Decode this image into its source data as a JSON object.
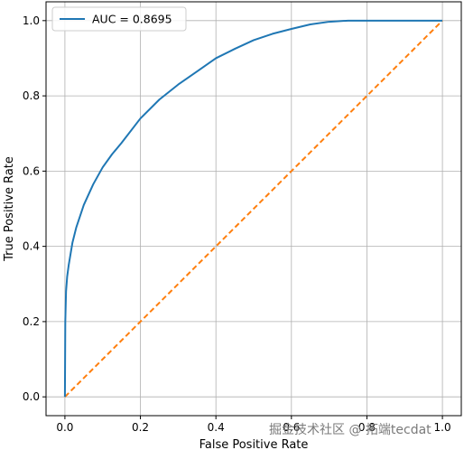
{
  "chart_data": {
    "type": "line",
    "xlabel": "False Positive Rate",
    "ylabel": "True Positive Rate",
    "xlim": [
      -0.05,
      1.05
    ],
    "ylim": [
      -0.05,
      1.05
    ],
    "xticks": [
      "0.0",
      "0.2",
      "0.4",
      "0.6",
      "0.8",
      "1.0"
    ],
    "yticks": [
      "0.0",
      "0.2",
      "0.4",
      "0.6",
      "0.8",
      "1.0"
    ],
    "grid": true,
    "legend_position": "top-left",
    "series": [
      {
        "name": "AUC = 0.8695",
        "color": "#1f77b4",
        "style": "solid",
        "x": [
          0,
          0.001,
          0.003,
          0.006,
          0.01,
          0.02,
          0.03,
          0.05,
          0.075,
          0.1,
          0.125,
          0.15,
          0.2,
          0.25,
          0.3,
          0.35,
          0.4,
          0.45,
          0.5,
          0.55,
          0.6,
          0.65,
          0.7,
          0.75,
          0.8,
          0.85,
          0.9,
          0.95,
          1.0
        ],
        "y": [
          0,
          0.2,
          0.28,
          0.32,
          0.35,
          0.41,
          0.45,
          0.51,
          0.565,
          0.61,
          0.645,
          0.675,
          0.74,
          0.79,
          0.83,
          0.865,
          0.9,
          0.925,
          0.948,
          0.965,
          0.978,
          0.99,
          0.997,
          1.0,
          1.0,
          1.0,
          1.0,
          1.0,
          1.0
        ]
      },
      {
        "name": "",
        "color": "#ff7f0e",
        "style": "dashed",
        "x": [
          0,
          1
        ],
        "y": [
          0,
          1
        ]
      }
    ]
  },
  "watermark": "掘金技术社区 @ 拓端tecdat"
}
